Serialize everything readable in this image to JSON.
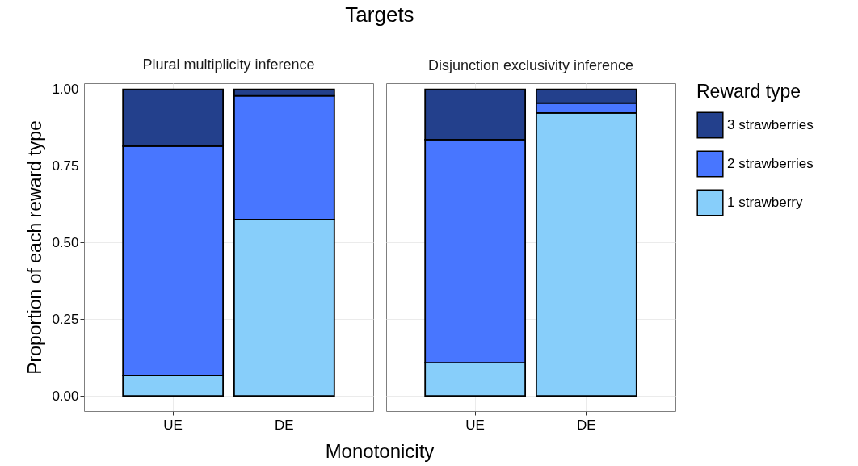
{
  "chart_data": [
    {
      "type": "bar",
      "title": "Targets",
      "subtitle": "Plural multiplicity inference",
      "xlabel": "Monotonicity",
      "ylabel": "Proportion of each reward type",
      "categories": [
        "UE",
        "DE"
      ],
      "stacked": true,
      "ylim": [
        -0.05,
        1.02
      ],
      "yticks": [
        {
          "value": 0,
          "label": "0.00"
        },
        {
          "value": 0.25,
          "label": "0.25"
        },
        {
          "value": 0.5,
          "label": "0.50"
        },
        {
          "value": 0.75,
          "label": "0.75"
        },
        {
          "value": 1,
          "label": "1.00"
        }
      ],
      "grid": true,
      "series": [
        {
          "color": "#87cefa",
          "values": [
            0.066,
            0.575
          ]
        },
        {
          "color": "#4876ff",
          "values": [
            0.749,
            0.404
          ]
        },
        {
          "color": "#23408c",
          "values": [
            0.185,
            0.021
          ]
        }
      ]
    },
    {
      "type": "bar",
      "subtitle": "Disjunction exclusivity inference",
      "categories": [
        "UE",
        "DE"
      ],
      "stacked": true,
      "ylim": [
        -0.05,
        1.02
      ],
      "yticks": [
        {
          "value": 0,
          "label": null
        },
        {
          "value": 0.25,
          "label": null
        },
        {
          "value": 0.5,
          "label": null
        },
        {
          "value": 0.75,
          "label": null
        },
        {
          "value": 1,
          "label": null
        }
      ],
      "tick_labels": "x",
      "grid": true,
      "legend": "right",
      "legend_title": "Reward type",
      "series": [
        {
          "name": "1 strawberry",
          "color": "#87cefa",
          "values": [
            0.108,
            0.923
          ]
        },
        {
          "name": "2 strawberries",
          "color": "#4876ff",
          "values": [
            0.728,
            0.032
          ]
        },
        {
          "name": "3 strawberries",
          "color": "#23408c",
          "values": [
            0.164,
            0.045
          ]
        }
      ]
    }
  ]
}
